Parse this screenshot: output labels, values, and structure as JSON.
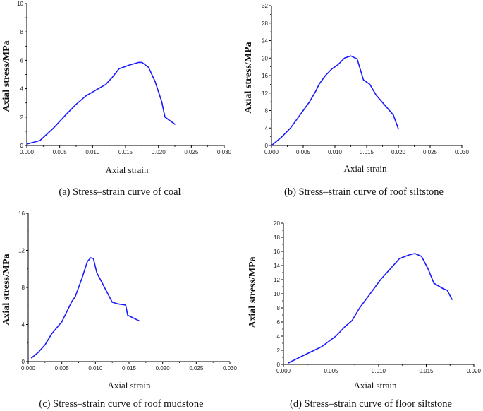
{
  "chart_data": [
    {
      "type": "line",
      "title": "",
      "caption": "(a) Stress–strain curve of coal",
      "xlabel": "Axial strain",
      "ylabel": "Axial stress/MPa",
      "xlim": [
        0,
        0.03
      ],
      "ylim": [
        0,
        10
      ],
      "xticks": [
        "0.000",
        "0.005",
        "0.010",
        "0.015",
        "0.020",
        "0.025",
        "0.030"
      ],
      "yticks": [
        "0",
        "2",
        "4",
        "6",
        "8",
        "10"
      ],
      "color": "#1a1aff",
      "series": [
        {
          "name": "coal",
          "x": [
            0.0,
            0.002,
            0.004,
            0.006,
            0.0075,
            0.009,
            0.0105,
            0.012,
            0.013,
            0.014,
            0.0155,
            0.017,
            0.0175,
            0.0185,
            0.0195,
            0.0205,
            0.021,
            0.0225
          ],
          "y": [
            0.1,
            0.35,
            1.2,
            2.2,
            2.9,
            3.5,
            3.9,
            4.3,
            4.8,
            5.4,
            5.65,
            5.85,
            5.85,
            5.5,
            4.5,
            3.1,
            2.0,
            1.5
          ]
        }
      ]
    },
    {
      "type": "line",
      "title": "",
      "caption": "(b) Stress–strain curve of roof siltstone",
      "xlabel": "Axial strain",
      "ylabel": "Axial stress/MPa",
      "xlim": [
        0,
        0.03
      ],
      "ylim": [
        0,
        32
      ],
      "xticks": [
        "0.000",
        "0.005",
        "0.010",
        "0.015",
        "0.020",
        "0.025",
        "0.030"
      ],
      "yticks": [
        "0",
        "4",
        "8",
        "12",
        "16",
        "20",
        "24",
        "28",
        "32"
      ],
      "color": "#1a1aff",
      "series": [
        {
          "name": "roof siltstone",
          "x": [
            0.0,
            0.0015,
            0.003,
            0.0045,
            0.006,
            0.007,
            0.0075,
            0.0085,
            0.0095,
            0.0105,
            0.0115,
            0.0125,
            0.0135,
            0.0145,
            0.0155,
            0.0165,
            0.018,
            0.0192,
            0.02
          ],
          "y": [
            0.0,
            1.8,
            4.0,
            7.0,
            10.0,
            12.5,
            14.0,
            16.0,
            17.5,
            18.5,
            20.0,
            20.5,
            19.8,
            15.0,
            14.0,
            11.5,
            9.0,
            7.0,
            3.8
          ]
        }
      ]
    },
    {
      "type": "line",
      "title": "",
      "caption": "(c) Stress–strain curve of roof mudstone",
      "xlabel": "Axial strain",
      "ylabel": "Axial stress/MPa",
      "xlim": [
        0,
        0.03
      ],
      "ylim": [
        0,
        16
      ],
      "xticks": [
        "0.000",
        "0.005",
        "0.010",
        "0.015",
        "0.020",
        "0.025",
        "0.030"
      ],
      "yticks": [
        "0",
        "4",
        "8",
        "12",
        "16"
      ],
      "color": "#1a1aff",
      "series": [
        {
          "name": "roof mudstone",
          "x": [
            0.0005,
            0.0015,
            0.0025,
            0.0035,
            0.005,
            0.0065,
            0.007,
            0.008,
            0.0088,
            0.0093,
            0.0097,
            0.0102,
            0.0115,
            0.0125,
            0.0135,
            0.0145,
            0.0148,
            0.0165
          ],
          "y": [
            0.4,
            1.0,
            1.8,
            3.0,
            4.3,
            6.5,
            7.0,
            9.0,
            10.8,
            11.2,
            11.1,
            9.6,
            7.8,
            6.4,
            6.2,
            6.1,
            5.0,
            4.4
          ]
        }
      ]
    },
    {
      "type": "line",
      "title": "",
      "caption": "(d) Stress–strain curve of floor siltstone",
      "xlabel": "Axial strain",
      "ylabel": "Axial stress/MPa",
      "xlim": [
        0,
        0.02
      ],
      "ylim": [
        0,
        20
      ],
      "xticks": [
        "0.000",
        "0.005",
        "0.010",
        "0.015",
        "0.020"
      ],
      "yticks": [
        "0",
        "2",
        "4",
        "6",
        "8",
        "10",
        "12",
        "14",
        "16",
        "18",
        "20"
      ],
      "color": "#1a1aff",
      "series": [
        {
          "name": "floor siltstone",
          "x": [
            0.0005,
            0.002,
            0.004,
            0.0055,
            0.0065,
            0.0072,
            0.008,
            0.009,
            0.0102,
            0.0112,
            0.0122,
            0.0132,
            0.0138,
            0.0145,
            0.0152,
            0.0158,
            0.0168,
            0.0172,
            0.0177
          ],
          "y": [
            0.2,
            1.2,
            2.5,
            4.0,
            5.4,
            6.2,
            8.0,
            9.8,
            12.0,
            13.5,
            15.0,
            15.5,
            15.7,
            15.3,
            13.5,
            11.5,
            10.7,
            10.5,
            9.2
          ]
        }
      ]
    }
  ]
}
